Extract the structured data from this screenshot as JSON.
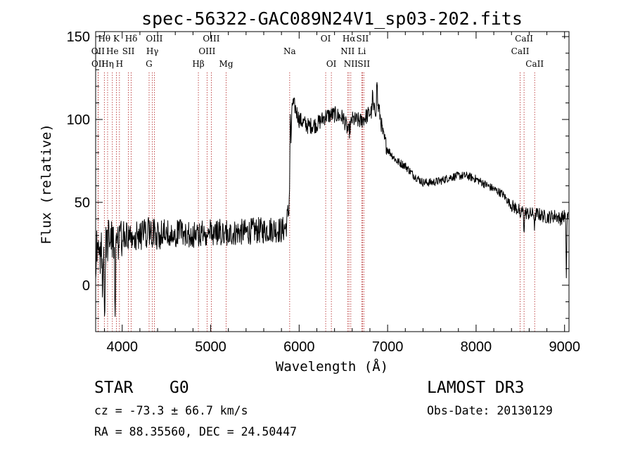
{
  "chart_data": {
    "type": "line",
    "title": "spec-56322-GAC089N24V1_sp03-202.fits",
    "xlabel": "Wavelength (Å)",
    "ylabel": "Flux (relative)",
    "xlim": [
      3700,
      9050
    ],
    "ylim": [
      -28,
      153
    ],
    "xticks": [
      4000,
      5000,
      6000,
      7000,
      8000,
      9000
    ],
    "yticks": [
      0,
      50,
      100,
      150
    ],
    "xtick_labels": [
      "4000",
      "5000",
      "6000",
      "7000",
      "8000",
      "9000"
    ],
    "ytick_labels": [
      "0",
      "50",
      "100",
      "150"
    ],
    "spectrum_knots": [
      [
        3700,
        10
      ],
      [
        3720,
        30
      ],
      [
        3750,
        18
      ],
      [
        3780,
        25
      ],
      [
        3800,
        22
      ],
      [
        3850,
        28
      ],
      [
        3900,
        28
      ],
      [
        3950,
        26
      ],
      [
        4000,
        30
      ],
      [
        4100,
        28
      ],
      [
        4200,
        30
      ],
      [
        4300,
        32
      ],
      [
        4400,
        30
      ],
      [
        4500,
        31
      ],
      [
        4600,
        31
      ],
      [
        4700,
        32
      ],
      [
        4800,
        30
      ],
      [
        4900,
        31
      ],
      [
        5000,
        32
      ],
      [
        5100,
        32
      ],
      [
        5200,
        31
      ],
      [
        5300,
        32
      ],
      [
        5400,
        32
      ],
      [
        5500,
        33
      ],
      [
        5600,
        33
      ],
      [
        5700,
        34
      ],
      [
        5800,
        33
      ],
      [
        5850,
        35
      ],
      [
        5880,
        45
      ],
      [
        5900,
        60
      ],
      [
        5920,
        110
      ],
      [
        5950,
        108
      ],
      [
        6000,
        100
      ],
      [
        6100,
        96
      ],
      [
        6200,
        97
      ],
      [
        6300,
        102
      ],
      [
        6400,
        103
      ],
      [
        6500,
        101
      ],
      [
        6560,
        92
      ],
      [
        6600,
        100
      ],
      [
        6700,
        99
      ],
      [
        6800,
        104
      ],
      [
        6900,
        107
      ],
      [
        6950,
        90
      ],
      [
        7000,
        82
      ],
      [
        7100,
        75
      ],
      [
        7200,
        72
      ],
      [
        7300,
        66
      ],
      [
        7400,
        62
      ],
      [
        7500,
        62
      ],
      [
        7600,
        63
      ],
      [
        7700,
        65
      ],
      [
        7800,
        66
      ],
      [
        7900,
        66
      ],
      [
        8000,
        64
      ],
      [
        8100,
        61
      ],
      [
        8200,
        58
      ],
      [
        8300,
        55
      ],
      [
        8400,
        48
      ],
      [
        8500,
        45
      ],
      [
        8600,
        43
      ],
      [
        8700,
        43
      ],
      [
        8800,
        41
      ],
      [
        8900,
        42
      ],
      [
        8950,
        40
      ],
      [
        9000,
        42
      ]
    ],
    "spectrum_features": [
      {
        "x": 3780,
        "depth": 35
      },
      {
        "x": 3800,
        "depth": 45
      },
      {
        "x": 3920,
        "depth": 40
      },
      {
        "x": 5900,
        "depth": -40
      },
      {
        "x": 6830,
        "depth": -10
      },
      {
        "x": 6880,
        "depth": -18
      },
      {
        "x": 8498,
        "depth": 8
      },
      {
        "x": 8542,
        "depth": 10
      },
      {
        "x": 8662,
        "depth": 8
      },
      {
        "x": 9020,
        "depth": 35
      }
    ],
    "spectral_lines": [
      {
        "label": "Hθ",
        "x": 3798,
        "row": 0
      },
      {
        "label": "OII",
        "x": 3727,
        "row": 1
      },
      {
        "label": "OII",
        "x": 3729,
        "row": 2
      },
      {
        "label": "He",
        "x": 3889,
        "row": 1
      },
      {
        "label": "Hη",
        "x": 3835,
        "row": 2
      },
      {
        "label": "K",
        "x": 3934,
        "row": 0
      },
      {
        "label": "H",
        "x": 3969,
        "row": 2
      },
      {
        "label": "SII",
        "x": 4070,
        "row": 1
      },
      {
        "label": "Hδ",
        "x": 4102,
        "row": 0
      },
      {
        "label": "OIII",
        "x": 4363,
        "row": 0
      },
      {
        "label": "Hγ",
        "x": 4341,
        "row": 1
      },
      {
        "label": "G",
        "x": 4304,
        "row": 2
      },
      {
        "label": "OIII",
        "x": 5007,
        "row": 0
      },
      {
        "label": "OIII",
        "x": 4959,
        "row": 1
      },
      {
        "label": "Hβ",
        "x": 4861,
        "row": 2
      },
      {
        "label": "Mg",
        "x": 5175,
        "row": 2
      },
      {
        "label": "Na",
        "x": 5893,
        "row": 1
      },
      {
        "label": "OI",
        "x": 6300,
        "row": 0
      },
      {
        "label": "OI",
        "x": 6364,
        "row": 2
      },
      {
        "label": "Hα",
        "x": 6563,
        "row": 0
      },
      {
        "label": "SII",
        "x": 6716,
        "row": 0
      },
      {
        "label": "NII",
        "x": 6548,
        "row": 1
      },
      {
        "label": "Li",
        "x": 6708,
        "row": 1
      },
      {
        "label": "NII",
        "x": 6584,
        "row": 2
      },
      {
        "label": "SII",
        "x": 6731,
        "row": 2
      },
      {
        "label": "CaII",
        "x": 8542,
        "row": 0
      },
      {
        "label": "CaII",
        "x": 8498,
        "row": 1
      },
      {
        "label": "CaII",
        "x": 8662,
        "row": 2
      }
    ]
  },
  "info": {
    "object_class": "STAR",
    "subclass": "G0",
    "release": "LAMOST DR3",
    "redshift": "cz = -73.3 ± 66.7 km/s",
    "obs_date": "Obs-Date: 20130129",
    "coords": "RA =  88.35560, DEC =  24.50447"
  }
}
